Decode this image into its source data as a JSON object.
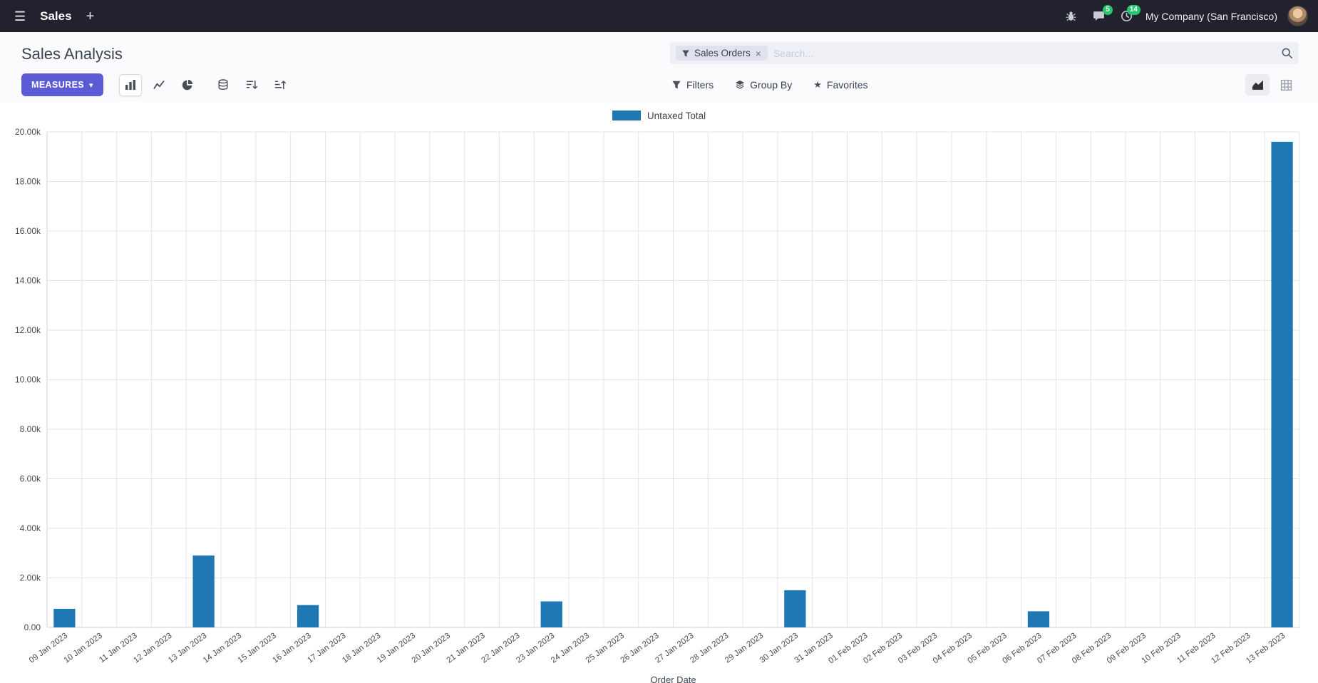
{
  "navbar": {
    "app_name": "Sales",
    "company": "My Company (San Francisco)",
    "messages_badge": "5",
    "activities_badge": "14"
  },
  "control_panel": {
    "title": "Sales Analysis",
    "measures_label": "MEASURES",
    "filters_label": "Filters",
    "group_by_label": "Group By",
    "favorites_label": "Favorites",
    "search": {
      "facet_label": "Sales Orders",
      "placeholder": "Search..."
    }
  },
  "icons": {
    "menu": "☰",
    "plus": "+",
    "caret_down": "▾",
    "star": "★",
    "close": "×"
  },
  "chart_data": {
    "type": "bar",
    "title": "",
    "xlabel": "Order Date",
    "ylabel": "",
    "legend": [
      {
        "label": "Untaxed Total",
        "color": "#1f77b4"
      }
    ],
    "legend_position": "top",
    "grid": true,
    "bar_color": "#1f77b4",
    "ylim": [
      0,
      20000
    ],
    "y_ticks": [
      0,
      2000,
      4000,
      6000,
      8000,
      10000,
      12000,
      14000,
      16000,
      18000,
      20000
    ],
    "y_tick_labels": [
      "0.00",
      "2.00k",
      "4.00k",
      "6.00k",
      "8.00k",
      "10.00k",
      "12.00k",
      "14.00k",
      "16.00k",
      "18.00k",
      "20.00k"
    ],
    "categories": [
      "09 Jan 2023",
      "10 Jan 2023",
      "11 Jan 2023",
      "12 Jan 2023",
      "13 Jan 2023",
      "14 Jan 2023",
      "15 Jan 2023",
      "16 Jan 2023",
      "17 Jan 2023",
      "18 Jan 2023",
      "19 Jan 2023",
      "20 Jan 2023",
      "21 Jan 2023",
      "22 Jan 2023",
      "23 Jan 2023",
      "24 Jan 2023",
      "25 Jan 2023",
      "26 Jan 2023",
      "27 Jan 2023",
      "28 Jan 2023",
      "29 Jan 2023",
      "30 Jan 2023",
      "31 Jan 2023",
      "01 Feb 2023",
      "02 Feb 2023",
      "03 Feb 2023",
      "04 Feb 2023",
      "05 Feb 2023",
      "06 Feb 2023",
      "07 Feb 2023",
      "08 Feb 2023",
      "09 Feb 2023",
      "10 Feb 2023",
      "11 Feb 2023",
      "12 Feb 2023",
      "13 Feb 2023"
    ],
    "values": [
      750,
      0,
      0,
      0,
      2900,
      0,
      0,
      900,
      0,
      0,
      0,
      0,
      0,
      0,
      1050,
      0,
      0,
      0,
      0,
      0,
      0,
      1500,
      0,
      0,
      0,
      0,
      0,
      0,
      650,
      0,
      0,
      0,
      0,
      0,
      0,
      19600
    ]
  }
}
